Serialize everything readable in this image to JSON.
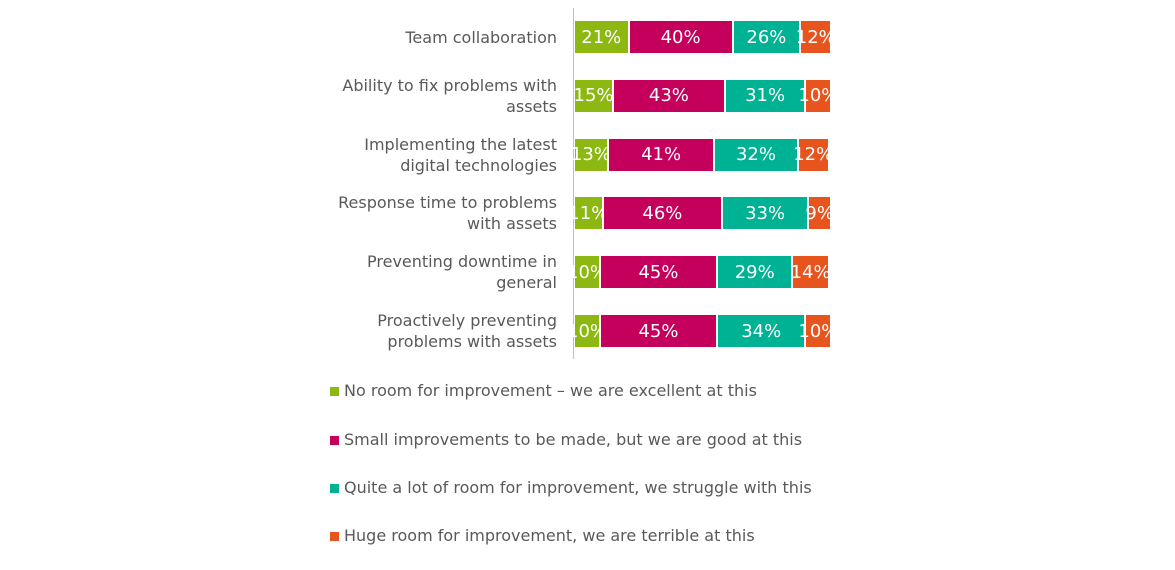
{
  "chart_data": {
    "type": "stacked-bar-horizontal",
    "categories": [
      "Team collaboration",
      "Ability to fix problems with assets",
      "Implementing the latest digital technologies",
      "Response time to problems with assets",
      "Preventing downtime in general",
      "Proactively preventing problems with assets"
    ],
    "series": [
      {
        "name": "No room for improvement – we are excellent at this",
        "color": "#8cb811",
        "values": [
          21,
          15,
          13,
          11,
          10,
          10
        ],
        "value_labels": [
          "21%",
          "15%",
          "13%",
          "11%",
          "10%",
          "10%"
        ]
      },
      {
        "name": "Small improvements to be made, but we are good at this",
        "color": "#c4005c",
        "values": [
          40,
          43,
          41,
          46,
          45,
          45
        ],
        "value_labels": [
          "40%",
          "43%",
          "41%",
          "46%",
          "45%",
          "45%"
        ]
      },
      {
        "name": "Quite a lot of room for improvement, we struggle with this",
        "color": "#00b294",
        "values": [
          26,
          31,
          32,
          33,
          29,
          34
        ],
        "value_labels": [
          "26%",
          "31%",
          "32%",
          "33%",
          "29%",
          "34%"
        ]
      },
      {
        "name": "Huge room for improvement, we are terrible at this",
        "color": "#e8541e",
        "values": [
          12,
          10,
          12,
          9,
          14,
          10
        ],
        "value_labels": [
          "12%",
          "10%",
          "12%",
          "9%",
          "14%",
          "10%"
        ]
      }
    ]
  }
}
